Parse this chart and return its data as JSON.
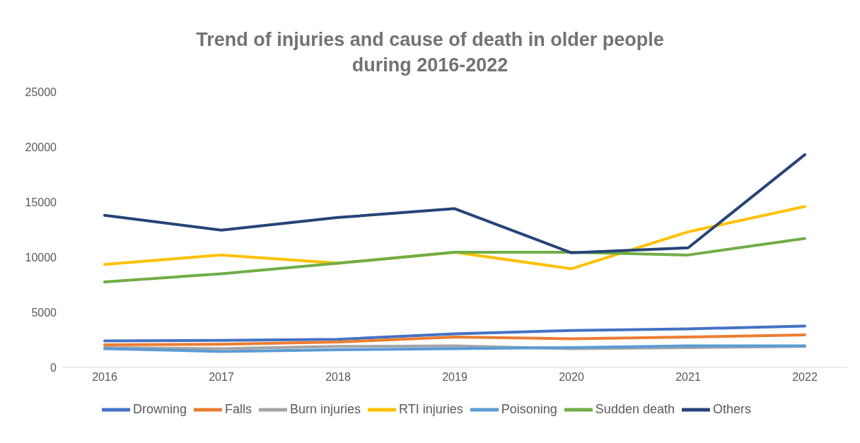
{
  "chart_data": {
    "type": "line",
    "title": "Trend of injuries and cause of death in older people\nduring 2016-2022",
    "categories": [
      "2016",
      "2017",
      "2018",
      "2019",
      "2020",
      "2021",
      "2022"
    ],
    "series": [
      {
        "name": "Drowning",
        "color": "#4472c4",
        "values": [
          2400,
          2450,
          2550,
          3050,
          3350,
          3500,
          3750
        ]
      },
      {
        "name": "Falls",
        "color": "#ed7d31",
        "values": [
          2050,
          2100,
          2300,
          2750,
          2600,
          2750,
          2950
        ]
      },
      {
        "name": "Burn injuries",
        "color": "#a5a5a5",
        "values": [
          1800,
          1700,
          1900,
          1950,
          1700,
          1800,
          1900
        ]
      },
      {
        "name": "RTI injuries",
        "color": "#ffc000",
        "values": [
          9350,
          10200,
          9450,
          10450,
          8950,
          12300,
          14600
        ]
      },
      {
        "name": "Poisoning",
        "color": "#5b9bd5",
        "values": [
          1700,
          1450,
          1600,
          1700,
          1800,
          1950,
          1950
        ]
      },
      {
        "name": "Sudden death",
        "color": "#70ad47",
        "values": [
          7750,
          8500,
          9450,
          10450,
          10450,
          10200,
          11700
        ]
      },
      {
        "name": "Others",
        "color": "#264478",
        "values": [
          13800,
          12450,
          13600,
          14400,
          10400,
          10850,
          19300
        ]
      }
    ],
    "ylim": [
      0,
      25000
    ],
    "yticks": [
      0,
      5000,
      10000,
      15000,
      20000,
      25000
    ],
    "grid": false,
    "legend": "bottom",
    "marker": "none",
    "line_style": "solid"
  }
}
